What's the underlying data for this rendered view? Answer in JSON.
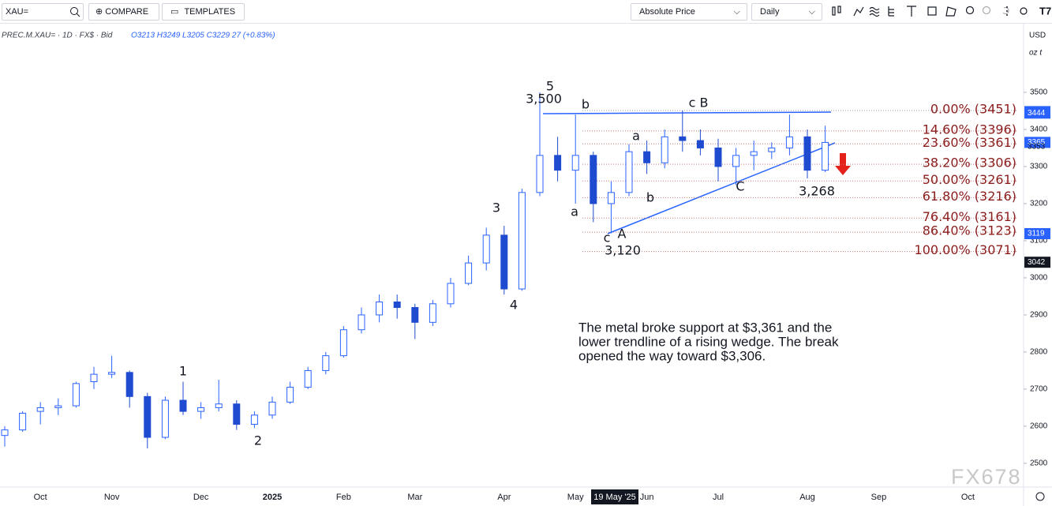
{
  "toolbar": {
    "symbol": "XAU=",
    "compare": "COMPARE",
    "templates": "TEMPLATES",
    "scale_mode": "Absolute Price",
    "interval": "Daily"
  },
  "legend": {
    "instrument": "PREC.M.XAU= · 1D · FX$ · Bid",
    "ohlc": "O3213 H3249 L3205 C3229 27 (+0.83%)"
  },
  "axis_units": {
    "currency": "USD",
    "unit": "oz t"
  },
  "crosshair_label": "19 May '25",
  "watermark": "FX678",
  "note": [
    "The metal broke support at $3,361 and the",
    "lower trendline of a rising wedge. The break",
    "opened the way toward $3,306."
  ],
  "chart_data": {
    "type": "candlestick",
    "categories": [
      null,
      null,
      "Oct",
      null,
      null,
      null,
      "Nov",
      null,
      null,
      null,
      null,
      "Dec",
      null,
      null,
      null,
      "2025",
      null,
      null,
      null,
      "Feb",
      null,
      null,
      null,
      "Mar",
      null,
      null,
      null,
      null,
      "Apr",
      null,
      null,
      null,
      "May",
      null,
      null,
      null,
      "Jun",
      null,
      null,
      null,
      "Jul",
      null,
      null,
      null,
      null,
      "Aug",
      null,
      null,
      null,
      "Sep",
      null,
      null,
      null,
      null,
      "Oct"
    ],
    "open": [
      2575,
      2590,
      2640,
      2650,
      2655,
      2720,
      2740,
      2745,
      2680,
      2570,
      2670,
      2640,
      2650,
      2660,
      2605,
      2630,
      2665,
      2705,
      2750,
      2790,
      2860,
      2900,
      2935,
      2920,
      2880,
      2930,
      2985,
      3040,
      3115,
      2970,
      3230,
      3330,
      3290,
      3330,
      3200,
      3230,
      3340,
      3310,
      3380,
      3370,
      3350,
      3300,
      3330,
      3340,
      3350,
      3380,
      3290,
      null,
      null,
      null,
      null,
      null,
      null,
      null,
      null
    ],
    "high": [
      2600,
      2640,
      2665,
      2675,
      2720,
      2760,
      2790,
      2750,
      2690,
      2680,
      2720,
      2665,
      2725,
      2670,
      2640,
      2680,
      2720,
      2760,
      2800,
      2870,
      2920,
      2955,
      2955,
      2930,
      2940,
      3000,
      3060,
      3135,
      3140,
      3240,
      3500,
      3380,
      3440,
      3340,
      3260,
      3360,
      3370,
      3400,
      3451,
      3400,
      3375,
      3350,
      3370,
      3365,
      3440,
      3400,
      3410,
      null,
      null,
      null,
      null,
      null,
      null,
      null,
      null
    ],
    "low": [
      2545,
      2585,
      2605,
      2630,
      2650,
      2700,
      2730,
      2650,
      2540,
      2565,
      2630,
      2620,
      2640,
      2590,
      2595,
      2620,
      2660,
      2700,
      2740,
      2785,
      2850,
      2880,
      2890,
      2835,
      2870,
      2920,
      2980,
      3020,
      2955,
      2965,
      3220,
      3260,
      3200,
      3150,
      3120,
      3220,
      3280,
      3295,
      3340,
      3330,
      3260,
      3250,
      3290,
      3320,
      3330,
      3268,
      3285,
      null,
      null,
      null,
      null,
      null,
      null,
      null,
      null
    ],
    "close": [
      2590,
      2635,
      2650,
      2655,
      2715,
      2740,
      2745,
      2680,
      2570,
      2670,
      2640,
      2650,
      2660,
      2605,
      2630,
      2665,
      2705,
      2750,
      2790,
      2860,
      2900,
      2935,
      2920,
      2880,
      2930,
      2985,
      3040,
      3115,
      2970,
      3230,
      3330,
      3290,
      3330,
      3200,
      3230,
      3340,
      3310,
      3380,
      3370,
      3350,
      3300,
      3330,
      3340,
      3350,
      3380,
      3290,
      3365,
      null,
      null,
      null,
      null,
      null,
      null,
      null,
      null
    ],
    "up_color": "#2962ff",
    "down_color": "#1f4bd1",
    "ylim": [
      2436,
      3685
    ],
    "yticks": [
      2500,
      2600,
      2700,
      2800,
      2900,
      3000,
      3100,
      3200,
      3300,
      3400,
      3500
    ],
    "price_tags": [
      {
        "value": 3448,
        "color": "#2962ff"
      },
      {
        "value": 3444,
        "color": "#2962ff"
      },
      {
        "value": 3365,
        "color": "#2962ff"
      },
      {
        "value": 3353,
        "color": "none"
      },
      {
        "value": 3119,
        "color": "#2962ff"
      },
      {
        "value": 3042,
        "color": "#131722"
      }
    ],
    "fib_levels": [
      {
        "value": 3451,
        "label": "0.00% (3451)"
      },
      {
        "value": 3396,
        "label": "14.60% (3396)"
      },
      {
        "value": 3361,
        "label": "23.60% (3361)"
      },
      {
        "value": 3306,
        "label": "38.20% (3306)"
      },
      {
        "value": 3261,
        "label": "50.00% (3261)"
      },
      {
        "value": 3216,
        "label": "61.80% (3216)"
      },
      {
        "value": 3161,
        "label": "76.40% (3161)"
      },
      {
        "value": 3123,
        "label": "86.40% (3123)"
      },
      {
        "value": 3071,
        "label": "100.00% (3071)"
      }
    ],
    "fib_color": "#8b1c1c",
    "annotations": [
      "5",
      "3,500",
      "b",
      "c B",
      "a",
      "a",
      "b",
      "c",
      "A",
      "3,120",
      "C",
      "3,268",
      "3",
      "4",
      "1",
      "2"
    ]
  }
}
